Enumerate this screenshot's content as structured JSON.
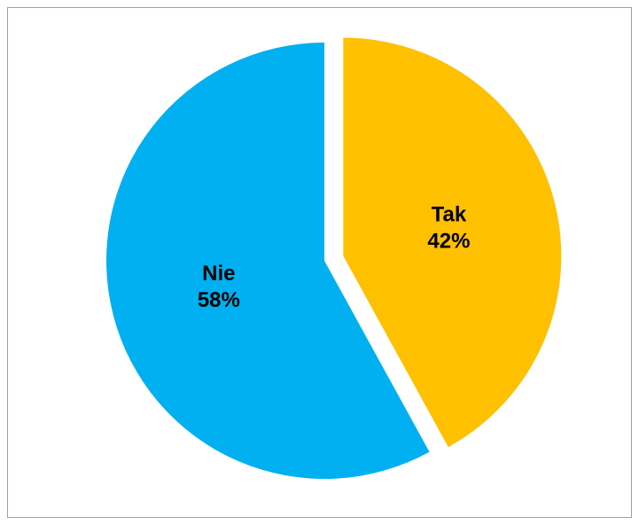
{
  "chart_data": {
    "type": "pie",
    "categories": [
      "Tak",
      "Nie"
    ],
    "values": [
      42,
      58
    ],
    "value_labels": [
      "42%",
      "58%"
    ],
    "colors": [
      "#FFC000",
      "#00B0F0"
    ]
  }
}
